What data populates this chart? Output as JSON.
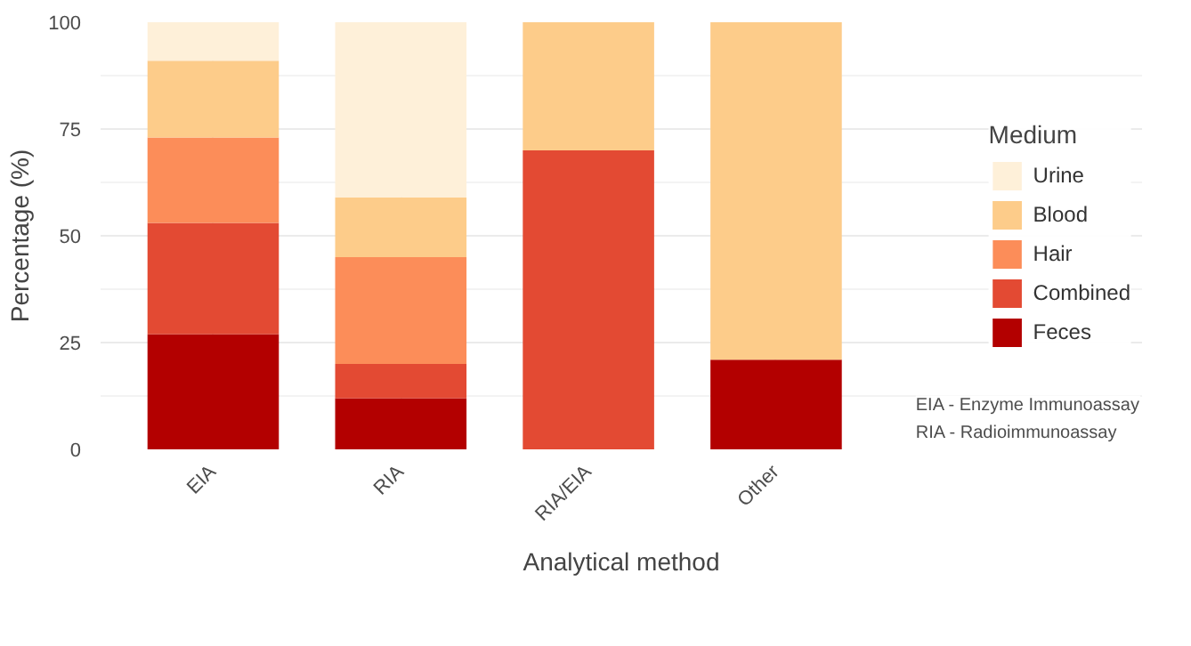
{
  "chart_data": {
    "type": "bar",
    "stacked": true,
    "xlabel": "Analytical method",
    "ylabel": "Percentage (%)",
    "legend_title": "Medium",
    "categories": [
      "EIA",
      "RIA",
      "RIA/EIA",
      "Other"
    ],
    "series": [
      {
        "name": "Feces",
        "color": "#b30000",
        "values": [
          27,
          12,
          0,
          21
        ]
      },
      {
        "name": "Combined",
        "color": "#e34a33",
        "values": [
          26,
          8,
          70,
          0
        ]
      },
      {
        "name": "Hair",
        "color": "#fc8d59",
        "values": [
          20,
          25,
          0,
          0
        ]
      },
      {
        "name": "Blood",
        "color": "#fdcc8a",
        "values": [
          18,
          14,
          30,
          79
        ]
      },
      {
        "name": "Urine",
        "color": "#fef0d9",
        "values": [
          9,
          41,
          0,
          0
        ]
      }
    ],
    "ylim": [
      0,
      100
    ],
    "yticks": [
      0,
      25,
      50,
      75,
      100
    ],
    "grid": true,
    "legend": "right",
    "annotations": [
      "EIA - Enzyme Immunoassay",
      "RIA - Radioimmunoassay"
    ]
  }
}
